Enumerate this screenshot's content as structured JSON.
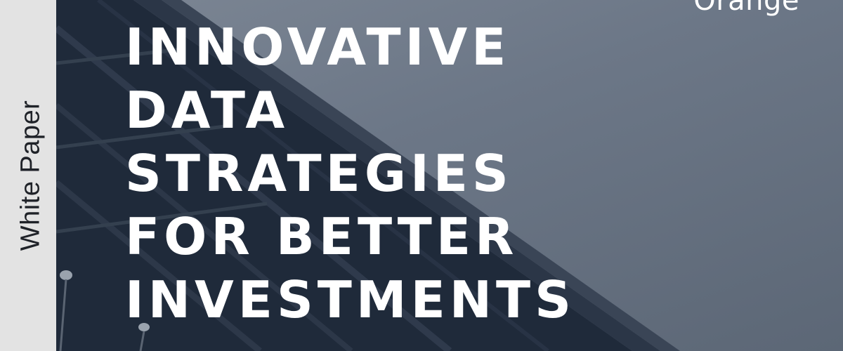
{
  "sidebar": {
    "label": "White Paper"
  },
  "brand": {
    "name": "Orange"
  },
  "headline": {
    "lines": [
      "INNOVATIVE",
      "DATA",
      "STRATEGIES",
      "FOR BETTER",
      "INVESTMENTS"
    ]
  },
  "colors": {
    "sidebar_bg": "#e3e3e3",
    "hero_dark": "#1f2a3a",
    "hero_sky": "#6c7787",
    "text": "#ffffff"
  }
}
